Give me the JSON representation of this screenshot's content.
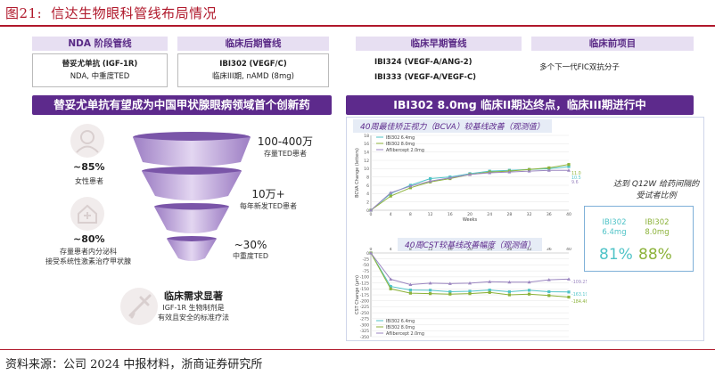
{
  "figure": {
    "number": "图21:",
    "title": "信达生物眼科管线布局情况",
    "source": "资料来源：公司 2024 中报材料，浙商证券研究所"
  },
  "pipeline": {
    "headers": [
      "NDA 阶段管线",
      "临床后期管线",
      "临床早期管线",
      "临床前项目"
    ],
    "nda": {
      "drug": "替妥尤单抗",
      "target": "(IGF-1R)",
      "indication": "NDA, 中重度TED"
    },
    "late": {
      "drug": "IBI302",
      "target": "(VEGF/C)",
      "indication": "临床III期, nAMD (8mg)"
    },
    "early": [
      "IBI324 (VEGF-A/ANG-2)",
      "IBI333 (VEGF-A/VEGF-C)"
    ],
    "preclinical": "多个下一代FIC双抗分子"
  },
  "left": {
    "banner": "替妥尤单抗有望成为中国甲状腺眼病领域首个创新药",
    "stats": [
      {
        "pct": "~85%",
        "label": "女性患者"
      },
      {
        "pct": "~80%",
        "label_line1": "存量患者内分泌科",
        "label_line2": "接受系统性激素治疗甲状腺"
      }
    ],
    "funnel": [
      {
        "big": "100-400万",
        "small": "存量TED患者"
      },
      {
        "big": "10万+",
        "small": "每年新发TED患者"
      },
      {
        "big": "~30%",
        "small": "中重度TED"
      }
    ],
    "need": {
      "title": "临床需求显著",
      "line1": "IGF-1R 生物制剂是",
      "line2": "有效且安全的标准疗法"
    }
  },
  "right": {
    "banner": "IBI302 8.0mg 临床II期达终点，临床III期进行中",
    "chart1_title": "40周最佳矫正视力（BCVA）较基线改善（观测值）",
    "chart2_title": "40周CST较基线改善幅度（观测值）",
    "ratio_note_line1": "达到 Q12W 给药间隔的",
    "ratio_note_line2": "受试者比例",
    "ratio": [
      {
        "name_line1": "IBI302",
        "name_line2": "6.4mg",
        "value": "81%",
        "color": "#4fc3c7"
      },
      {
        "name_line1": "IBI302",
        "name_line2": "8.0mg",
        "value": "88%",
        "color": "#8cb23a"
      }
    ]
  },
  "chart_data": [
    {
      "type": "line",
      "title": "40周最佳矫正视力（BCVA）较基线改善（观测值）",
      "xlabel": "Weeks",
      "ylabel": "BCVA Change (letters)",
      "x": [
        0,
        4,
        8,
        12,
        16,
        20,
        24,
        28,
        32,
        36,
        40
      ],
      "xticks": [
        0,
        4,
        8,
        12,
        16,
        20,
        24,
        28,
        32,
        36,
        40
      ],
      "yticks": [
        0,
        2,
        4,
        6,
        8,
        10,
        12,
        14,
        16,
        18
      ],
      "ylim": [
        0,
        18
      ],
      "series": [
        {
          "name": "IBI302 6.4mg",
          "color": "#4fc3c7",
          "values": [
            0,
            4.0,
            6.0,
            7.6,
            8.0,
            8.8,
            9.4,
            9.6,
            9.8,
            10.0,
            10.5
          ]
        },
        {
          "name": "IBI302 8.0mg",
          "color": "#8cb23a",
          "values": [
            0,
            3.4,
            5.4,
            6.8,
            7.6,
            8.6,
            9.2,
            9.4,
            9.8,
            10.2,
            11.0
          ]
        },
        {
          "name": "Aflibercept 2.0mg",
          "color": "#9b86c0",
          "values": [
            0,
            4.2,
            5.8,
            7.0,
            7.8,
            8.6,
            9.0,
            9.2,
            9.4,
            9.6,
            9.6
          ]
        }
      ],
      "end_labels": [
        "11.0",
        "10.5",
        "9.6"
      ]
    },
    {
      "type": "line",
      "title": "40周CST较基线改善幅度（观测值）",
      "xlabel": "Weeks",
      "ylabel": "CST Change (μm)",
      "x": [
        0,
        4,
        8,
        12,
        16,
        20,
        24,
        28,
        32,
        36,
        40
      ],
      "xticks": [
        0,
        4,
        8,
        12,
        16,
        20,
        24,
        28,
        32,
        36,
        40
      ],
      "yticks": [
        0,
        -25,
        -50,
        -75,
        -100,
        -125,
        -150,
        -175,
        -200,
        -225,
        -250,
        -275,
        -300,
        -325,
        -350
      ],
      "ylim": [
        -350,
        0
      ],
      "series": [
        {
          "name": "IBI302 6.4mg",
          "color": "#4fc3c7",
          "values": [
            0,
            -140,
            -155,
            -156,
            -162,
            -160,
            -155,
            -162,
            -156,
            -162,
            -163.2
          ]
        },
        {
          "name": "IBI302 8.0mg",
          "color": "#8cb23a",
          "values": [
            0,
            -150,
            -168,
            -170,
            -172,
            -170,
            -165,
            -175,
            -172,
            -178,
            -184.5
          ]
        },
        {
          "name": "Aflibercept 2.0mg",
          "color": "#9b86c0",
          "values": [
            0,
            -110,
            -132,
            -126,
            -128,
            -126,
            -120,
            -122,
            -122,
            -112,
            -109.3
          ]
        }
      ],
      "end_labels": [
        "-109.25",
        "-163.19",
        "-184.46"
      ]
    }
  ]
}
